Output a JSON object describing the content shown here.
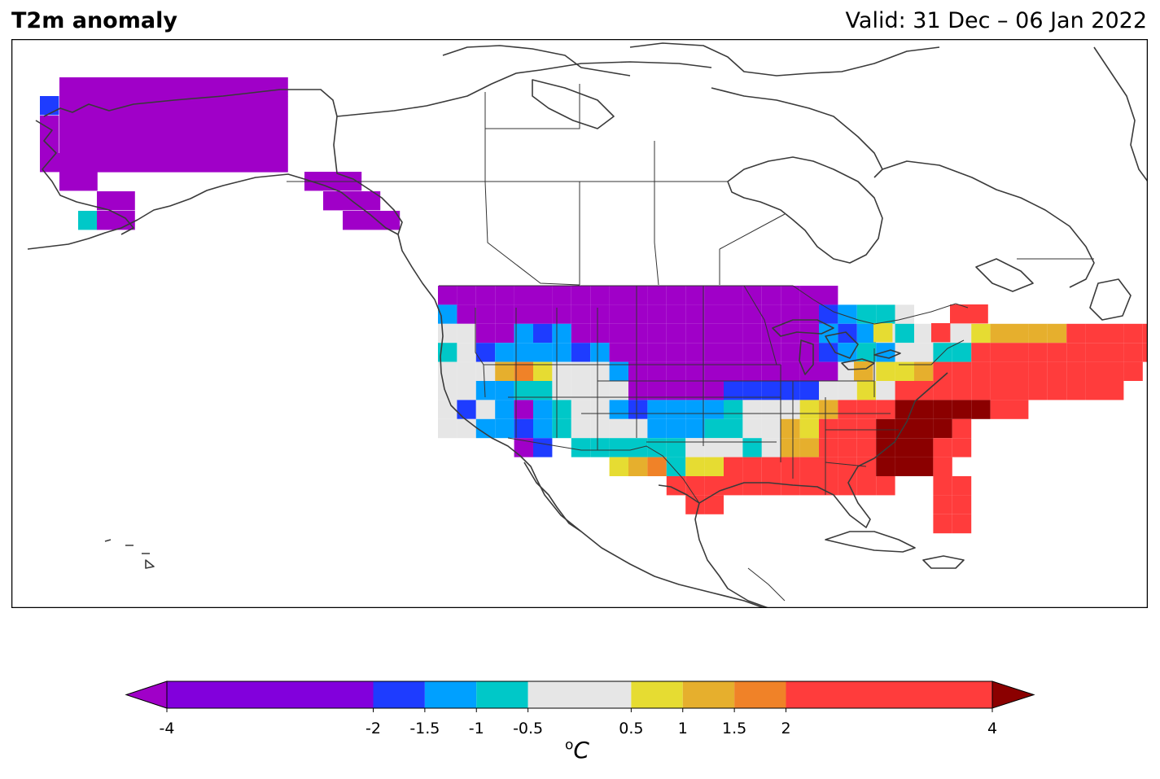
{
  "title": "T2m anomaly",
  "valid": "Valid: 31 Dec – 06 Jan 2022",
  "unit_label": "C",
  "unit_superscript": "o",
  "colorbar": {
    "ticks": [
      {
        "value": -4,
        "label": "-4"
      },
      {
        "value": -2,
        "label": "-2"
      },
      {
        "value": -1.5,
        "label": "-1.5"
      },
      {
        "value": -1,
        "label": "-1"
      },
      {
        "value": -0.5,
        "label": "-0.5"
      },
      {
        "value": 0.5,
        "label": "0.5"
      },
      {
        "value": 1,
        "label": "1"
      },
      {
        "value": 1.5,
        "label": "1.5"
      },
      {
        "value": 2,
        "label": "2"
      },
      {
        "value": 4,
        "label": "4"
      }
    ],
    "under_color": "#a000c8",
    "over_color": "#8b0000",
    "bins": [
      {
        "from": -4,
        "to": -2,
        "color": "#8200dc"
      },
      {
        "from": -2,
        "to": -1.5,
        "color": "#1e3cff"
      },
      {
        "from": -1.5,
        "to": -1,
        "color": "#00a0ff"
      },
      {
        "from": -1,
        "to": -0.5,
        "color": "#00c8c8"
      },
      {
        "from": -0.5,
        "to": 0.5,
        "color": "#e6e6e6"
      },
      {
        "from": 0.5,
        "to": 1,
        "color": "#e6dc32"
      },
      {
        "from": 1,
        "to": 1.5,
        "color": "#e6af2d"
      },
      {
        "from": 1.5,
        "to": 2,
        "color": "#f08228"
      },
      {
        "from": 2,
        "to": 4,
        "color": "#ff3c3c"
      }
    ]
  },
  "map": {
    "region": "North America",
    "land_fill": "#ffffff",
    "coast_color": "#3a3a3a",
    "border_color": "#333333"
  }
}
